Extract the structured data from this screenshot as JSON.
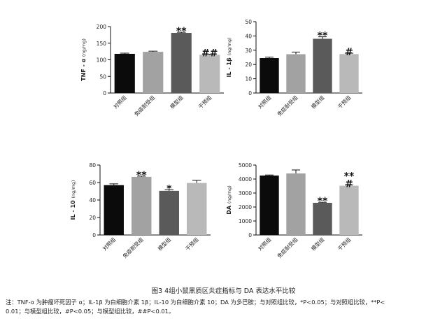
{
  "figure": {
    "caption": "图3   4组小鼠黑质区炎症指标与 DA 表达水平比较",
    "note_line1": "注：TNF-α 为肿瘤坏死因子 α；IL-1β 为白细胞介素 1β；IL-10 为白细胞介素 10；DA 为多巴胺；与对照组比较，*P<0.05；与对照组比较，**P<",
    "note_line2": "0.01；与模型组比较，#P<0.05；与模型组比较，##P<0.01。"
  },
  "colors": {
    "g1": "#0b0b0b",
    "g2": "#a2a2a2",
    "g3": "#5a5a5a",
    "g4": "#b9b9b9",
    "axis": "#111111"
  },
  "chart_data": [
    {
      "type": "bar",
      "ylabel": "TNF - α",
      "yunit": "(ng/mg)",
      "categories": [
        "对照组",
        "免疫耐受组",
        "模型组",
        "干预组"
      ],
      "values": [
        118,
        124,
        181,
        115
      ],
      "errors": [
        2,
        2,
        2,
        2
      ],
      "annotations": [
        "",
        "",
        "**",
        "##"
      ],
      "ylim": [
        0,
        200
      ],
      "yticks": [
        0,
        50,
        100,
        150,
        200
      ]
    },
    {
      "type": "bar",
      "ylabel": "IL - 1β",
      "yunit": "(ng/mg)",
      "categories": [
        "对照组",
        "免疫耐受组",
        "模型组",
        "干预组"
      ],
      "values": [
        24.5,
        27.2,
        38,
        27.3
      ],
      "errors": [
        0.6,
        1.5,
        1.4,
        0.6
      ],
      "annotations": [
        "",
        "",
        "**",
        "#"
      ],
      "ylim": [
        0,
        50
      ],
      "yticks": [
        0,
        10,
        20,
        30,
        40,
        50
      ]
    },
    {
      "type": "bar",
      "ylabel": "IL - 10",
      "yunit": "(ng/mg)",
      "categories": [
        "对照组",
        "免疫耐受组",
        "模型组",
        "干预组"
      ],
      "values": [
        57,
        66.5,
        50.5,
        59.5
      ],
      "errors": [
        1.5,
        0.8,
        1.2,
        3
      ],
      "annotations": [
        "",
        "**",
        "*",
        ""
      ],
      "ylim": [
        0,
        80
      ],
      "yticks": [
        0,
        20,
        40,
        60,
        80
      ]
    },
    {
      "type": "bar",
      "ylabel": "DA",
      "yunit": "(ng/mg)",
      "categories": [
        "对照组",
        "免疫耐受组",
        "模型组",
        "干预组"
      ],
      "values": [
        4250,
        4400,
        2300,
        3520
      ],
      "errors": [
        40,
        250,
        40,
        60
      ],
      "annotations": [
        "",
        "",
        "**",
        "**\n#"
      ],
      "ylim": [
        0,
        5000
      ],
      "yticks": [
        0,
        1000,
        2000,
        3000,
        4000,
        5000
      ]
    }
  ]
}
